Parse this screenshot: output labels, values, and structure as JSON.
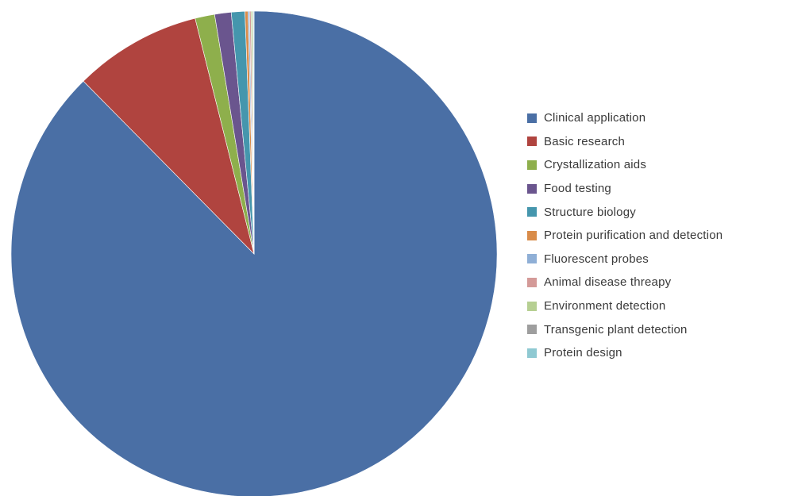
{
  "chart_data": {
    "type": "pie",
    "title": "",
    "categories": [
      "Clinical application",
      "Basic research",
      "Crystallization aids",
      "Food testing",
      "Structure biology",
      "Protein purification and detection",
      "Fluorescent probes",
      "Animal disease threapy",
      "Environment detection",
      "Transgenic plant detection",
      "Protein design"
    ],
    "values": [
      87.6,
      8.5,
      1.3,
      1.1,
      0.9,
      0.2,
      0.1,
      0.1,
      0.1,
      0.05,
      0.05
    ],
    "colors": [
      "#4a6fa5",
      "#b0443f",
      "#8eaf4c",
      "#6a558e",
      "#4596ad",
      "#d98c4a",
      "#8fafd6",
      "#d49a98",
      "#b6cf92",
      "#9e9e9e",
      "#8fc9d2"
    ],
    "start": "12 o'clock",
    "direction": "clockwise",
    "legend_position": "right"
  }
}
